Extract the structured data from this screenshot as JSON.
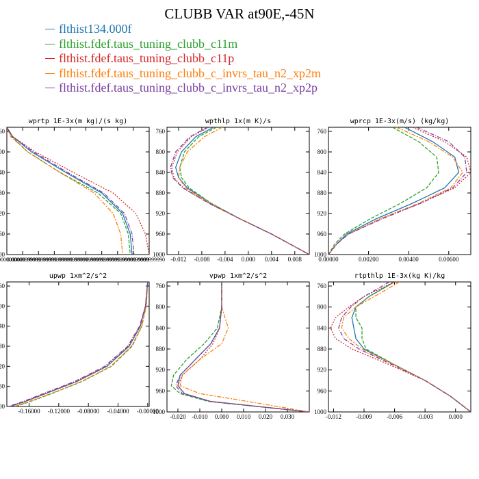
{
  "title": "CLUBB VAR at90E,-45N",
  "legend": [
    {
      "label": "flthist134.000f",
      "color": "#1f77b4"
    },
    {
      "label": "flthist.fdef.taus_tuning_clubb_c11m",
      "color": "#2ca02c"
    },
    {
      "label": "flthist.fdef.taus_tuning_clubb_c11p",
      "color": "#d62728"
    },
    {
      "label": "flthist.fdef.taus_tuning_clubb_c_invrs_tau_n2_xp2m",
      "color": "#ff7f0e"
    },
    {
      "label": "flthist.fdef.taus_tuning_clubb_c_invrs_tau_n2_xp2p",
      "color": "#7b3fa0"
    }
  ],
  "chart_data": [
    {
      "type": "line",
      "title": "wprtp   1E-3x(m kg)/(s kg)",
      "ylim": [
        760,
        1000
      ],
      "yticks": [
        760,
        800,
        840,
        880,
        920,
        960,
        1000
      ],
      "xlim": [
        0.0,
        0.075
      ],
      "xtick_labels": [
        "0.0000000000",
        "0.0000999999",
        "0.0000999999",
        "0.0000999999",
        "0.0000999999",
        "0.0000999999",
        "0.0000999999",
        "0.0000999999",
        "0.0000999999",
        "0.0000999990"
      ],
      "y": [
        752,
        770,
        800,
        840,
        880,
        920,
        960,
        1000
      ],
      "series": [
        {
          "values": [
            0.0,
            0.003,
            0.013,
            0.031,
            0.05,
            0.061,
            0.065,
            0.066
          ]
        },
        {
          "values": [
            0.0,
            0.0025,
            0.011,
            0.028,
            0.048,
            0.06,
            0.064,
            0.065
          ]
        },
        {
          "values": [
            0.0,
            0.003,
            0.015,
            0.035,
            0.056,
            0.068,
            0.073,
            0.075
          ]
        },
        {
          "values": [
            0.0,
            0.002,
            0.011,
            0.028,
            0.046,
            0.056,
            0.06,
            0.061
          ]
        },
        {
          "values": [
            0.0,
            0.003,
            0.014,
            0.032,
            0.051,
            0.062,
            0.066,
            0.067
          ]
        }
      ]
    },
    {
      "type": "line",
      "title": "wpthlp   1x(m K)/s",
      "ylim": [
        760,
        1000
      ],
      "yticks": [
        760,
        800,
        840,
        880,
        920,
        960,
        1000
      ],
      "xlim": [
        -0.014,
        0.0105
      ],
      "xticks": [
        -0.012,
        -0.008,
        -0.004,
        0.0,
        0.004,
        0.008
      ],
      "xtick_labels": [
        "-0.012",
        "-0.008",
        "-0.004",
        "0.000",
        "0.004",
        "0.008"
      ],
      "y": [
        752,
        770,
        800,
        830,
        850,
        870,
        900,
        930,
        960,
        1000
      ],
      "series": [
        {
          "values": [
            -0.006,
            -0.009,
            -0.0115,
            -0.0125,
            -0.012,
            -0.0105,
            -0.0065,
            -0.0015,
            0.004,
            0.0105
          ]
        },
        {
          "values": [
            -0.0055,
            -0.0085,
            -0.011,
            -0.0118,
            -0.0115,
            -0.0102,
            -0.0064,
            -0.0015,
            0.004,
            0.0105
          ]
        },
        {
          "values": [
            -0.0068,
            -0.0098,
            -0.0122,
            -0.0132,
            -0.0128,
            -0.0112,
            -0.0068,
            -0.0015,
            0.004,
            0.0105
          ]
        },
        {
          "values": [
            -0.0045,
            -0.0075,
            -0.0105,
            -0.0118,
            -0.012,
            -0.0108,
            -0.0066,
            -0.0015,
            0.004,
            0.0105
          ]
        },
        {
          "values": [
            -0.007,
            -0.01,
            -0.0125,
            -0.0134,
            -0.013,
            -0.0113,
            -0.0068,
            -0.0015,
            0.004,
            0.0105
          ]
        }
      ]
    },
    {
      "type": "line",
      "title": "wprcp   1E-3x(m/s) (kg/kg)",
      "ylim": [
        760,
        1000
      ],
      "yticks": [
        760,
        800,
        840,
        880,
        920,
        960,
        1000
      ],
      "xlim": [
        0.0,
        0.0071
      ],
      "xticks": [
        0.0,
        0.002,
        0.004,
        0.006
      ],
      "xtick_labels": [
        "0.00000",
        "0.00200",
        "0.00400",
        "0.00600"
      ],
      "y": [
        752,
        780,
        810,
        840,
        870,
        900,
        930,
        960,
        980,
        1000
      ],
      "series": [
        {
          "values": [
            0.0038,
            0.0052,
            0.0063,
            0.0065,
            0.0058,
            0.0042,
            0.0024,
            0.0009,
            0.0004,
            0.0
          ]
        },
        {
          "values": [
            0.0032,
            0.0045,
            0.0054,
            0.0055,
            0.0049,
            0.0036,
            0.0021,
            0.0008,
            0.0003,
            0.0
          ]
        },
        {
          "values": [
            0.0042,
            0.0058,
            0.0069,
            0.0071,
            0.0063,
            0.0046,
            0.0026,
            0.001,
            0.0004,
            0.0
          ]
        },
        {
          "values": [
            0.0034,
            0.005,
            0.0062,
            0.0067,
            0.0061,
            0.0045,
            0.0026,
            0.001,
            0.0004,
            0.0
          ]
        },
        {
          "values": [
            0.0044,
            0.006,
            0.0068,
            0.0069,
            0.0062,
            0.0046,
            0.0027,
            0.001,
            0.0004,
            0.0
          ]
        }
      ]
    },
    {
      "type": "line",
      "title": "upwp   1xm^2/s^2",
      "ylim": [
        760,
        1000
      ],
      "yticks": [
        760,
        800,
        840,
        880,
        920,
        960,
        1000
      ],
      "xlim": [
        -0.19,
        0.002
      ],
      "xticks": [
        -0.16,
        -0.12,
        -0.08,
        -0.04,
        0.0
      ],
      "xtick_labels": [
        "-0.16000",
        "-0.12000",
        "-0.08000",
        "-0.04000",
        "-0.00000"
      ],
      "y": [
        752,
        800,
        840,
        880,
        920,
        950,
        970,
        990,
        1000
      ],
      "series": [
        {
          "values": [
            0.0,
            -0.003,
            -0.01,
            -0.025,
            -0.055,
            -0.095,
            -0.13,
            -0.165,
            -0.185
          ]
        },
        {
          "values": [
            0.0,
            -0.002,
            -0.008,
            -0.021,
            -0.049,
            -0.088,
            -0.122,
            -0.158,
            -0.178
          ]
        },
        {
          "values": [
            0.0,
            -0.003,
            -0.01,
            -0.026,
            -0.056,
            -0.096,
            -0.131,
            -0.166,
            -0.186
          ]
        },
        {
          "values": [
            0.0,
            -0.002,
            -0.008,
            -0.022,
            -0.05,
            -0.089,
            -0.123,
            -0.16,
            -0.18
          ]
        },
        {
          "values": [
            0.0,
            -0.003,
            -0.011,
            -0.027,
            -0.058,
            -0.098,
            -0.133,
            -0.168,
            -0.188
          ]
        }
      ]
    },
    {
      "type": "line",
      "title": "vpwp   1xm^2/s^2",
      "ylim": [
        760,
        1000
      ],
      "yticks": [
        760,
        800,
        840,
        880,
        920,
        960,
        1000
      ],
      "xlim": [
        -0.025,
        0.04
      ],
      "xticks": [
        -0.02,
        -0.01,
        0.0,
        0.01,
        0.02,
        0.03
      ],
      "xtick_labels": [
        "-0.020",
        "-0.010",
        "0.000",
        "0.010",
        "0.020",
        "0.030"
      ],
      "y": [
        752,
        800,
        840,
        870,
        900,
        930,
        950,
        965,
        980,
        1000
      ],
      "series": [
        {
          "values": [
            0.0,
            0.0,
            -0.001,
            -0.005,
            -0.012,
            -0.019,
            -0.02,
            -0.017,
            -0.005,
            0.04
          ]
        },
        {
          "values": [
            0.0,
            0.0,
            -0.002,
            -0.008,
            -0.016,
            -0.022,
            -0.023,
            -0.019,
            -0.006,
            0.04
          ]
        },
        {
          "values": [
            0.0,
            0.0,
            -0.001,
            -0.004,
            -0.01,
            -0.018,
            -0.02,
            -0.017,
            -0.005,
            0.04
          ]
        },
        {
          "values": [
            0.0,
            0.0,
            0.003,
            0.0,
            -0.01,
            -0.018,
            -0.019,
            -0.01,
            0.012,
            0.04
          ]
        },
        {
          "values": [
            0.0,
            0.0,
            -0.001,
            -0.005,
            -0.012,
            -0.019,
            -0.021,
            -0.018,
            -0.005,
            0.04
          ]
        }
      ]
    },
    {
      "type": "line",
      "title": "rtpthlp   1E-3x(kg K)/kg",
      "ylim": [
        760,
        1000
      ],
      "yticks": [
        760,
        800,
        840,
        880,
        920,
        960,
        1000
      ],
      "xlim": [
        -0.0125,
        0.0015
      ],
      "xticks": [
        -0.012,
        -0.009,
        -0.006,
        -0.003,
        0.0
      ],
      "xtick_labels": [
        "-0.012",
        "-0.009",
        "-0.006",
        "-0.003",
        "0.000"
      ],
      "y": [
        752,
        780,
        800,
        820,
        840,
        860,
        880,
        910,
        940,
        970,
        1000
      ],
      "series": [
        {
          "values": [
            -0.006,
            -0.0085,
            -0.0098,
            -0.0102,
            -0.01,
            -0.0098,
            -0.009,
            -0.006,
            -0.003,
            -0.0005,
            0.0015
          ]
        },
        {
          "values": [
            -0.006,
            -0.0085,
            -0.0098,
            -0.0098,
            -0.0092,
            -0.0092,
            -0.0088,
            -0.006,
            -0.003,
            -0.0005,
            0.0015
          ]
        },
        {
          "values": [
            -0.006,
            -0.009,
            -0.0105,
            -0.0118,
            -0.0123,
            -0.0118,
            -0.0102,
            -0.0065,
            -0.003,
            -0.0005,
            0.0015
          ]
        },
        {
          "values": [
            -0.0055,
            -0.008,
            -0.0098,
            -0.011,
            -0.0112,
            -0.0105,
            -0.0092,
            -0.006,
            -0.003,
            -0.0005,
            0.0015
          ]
        },
        {
          "values": [
            -0.0065,
            -0.009,
            -0.0103,
            -0.0112,
            -0.0115,
            -0.011,
            -0.0095,
            -0.0062,
            -0.003,
            -0.0005,
            0.0015
          ]
        }
      ]
    }
  ]
}
